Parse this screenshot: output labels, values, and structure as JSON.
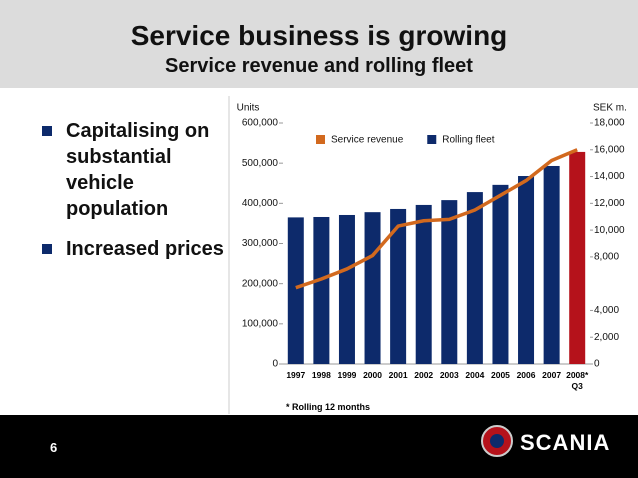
{
  "slide": {
    "title": "Service business is growing",
    "subtitle": "Service revenue and rolling fleet",
    "bullets": [
      "Capitalising on substantial vehicle population",
      "Increased prices"
    ],
    "footnote": "* Rolling 12 months",
    "page_number": "6",
    "logo_text": "SCANIA"
  },
  "chart_data": {
    "type": "bar",
    "y_label": "Units",
    "y2_label": "SEK m.",
    "categories": [
      "1997",
      "1998",
      "1999",
      "2000",
      "2001",
      "2002",
      "2003",
      "2004",
      "2005",
      "2006",
      "2007",
      "2008*\nQ3"
    ],
    "series": [
      {
        "name": "Service revenue",
        "type": "line",
        "axis": "y2",
        "color": "#d2691e",
        "values": [
          5700,
          6350,
          7100,
          8100,
          10300,
          10700,
          10800,
          11500,
          12600,
          13700,
          15200,
          16000
        ]
      },
      {
        "name": "Rolling fleet",
        "type": "bar",
        "color": "#0d2a6b",
        "colors": [
          "#0d2a6b",
          "#0d2a6b",
          "#0d2a6b",
          "#0d2a6b",
          "#0d2a6b",
          "#0d2a6b",
          "#0d2a6b",
          "#0d2a6b",
          "#0d2a6b",
          "#0d2a6b",
          "#0d2a6b",
          "#b5121b"
        ],
        "values": [
          365000,
          366000,
          371000,
          378000,
          386000,
          396000,
          408000,
          428000,
          446000,
          468000,
          493000,
          528000
        ]
      }
    ],
    "ylim": [
      0,
      600000
    ],
    "yticks": [
      {
        "value": 0,
        "label": "0"
      },
      {
        "value": 100000,
        "label": "100,000"
      },
      {
        "value": 200000,
        "label": "200,000"
      },
      {
        "value": 300000,
        "label": "300,000"
      },
      {
        "value": 400000,
        "label": "400,000"
      },
      {
        "value": 500000,
        "label": "500,000"
      },
      {
        "value": 600000,
        "label": "600,000"
      }
    ],
    "y2lim": [
      0,
      18000
    ],
    "y2ticks": [
      {
        "value": 0,
        "label": "0"
      },
      {
        "value": 2000,
        "label": "2,000"
      },
      {
        "value": 4000,
        "label": "4,000"
      },
      {
        "value": 8000,
        "label": "8,000"
      },
      {
        "value": 10000,
        "label": "10,000"
      },
      {
        "value": 12000,
        "label": "12,000"
      },
      {
        "value": 14000,
        "label": "14,000"
      },
      {
        "value": 16000,
        "label": "16,000"
      },
      {
        "value": 18000,
        "label": "18,000"
      }
    ],
    "grid": false
  }
}
